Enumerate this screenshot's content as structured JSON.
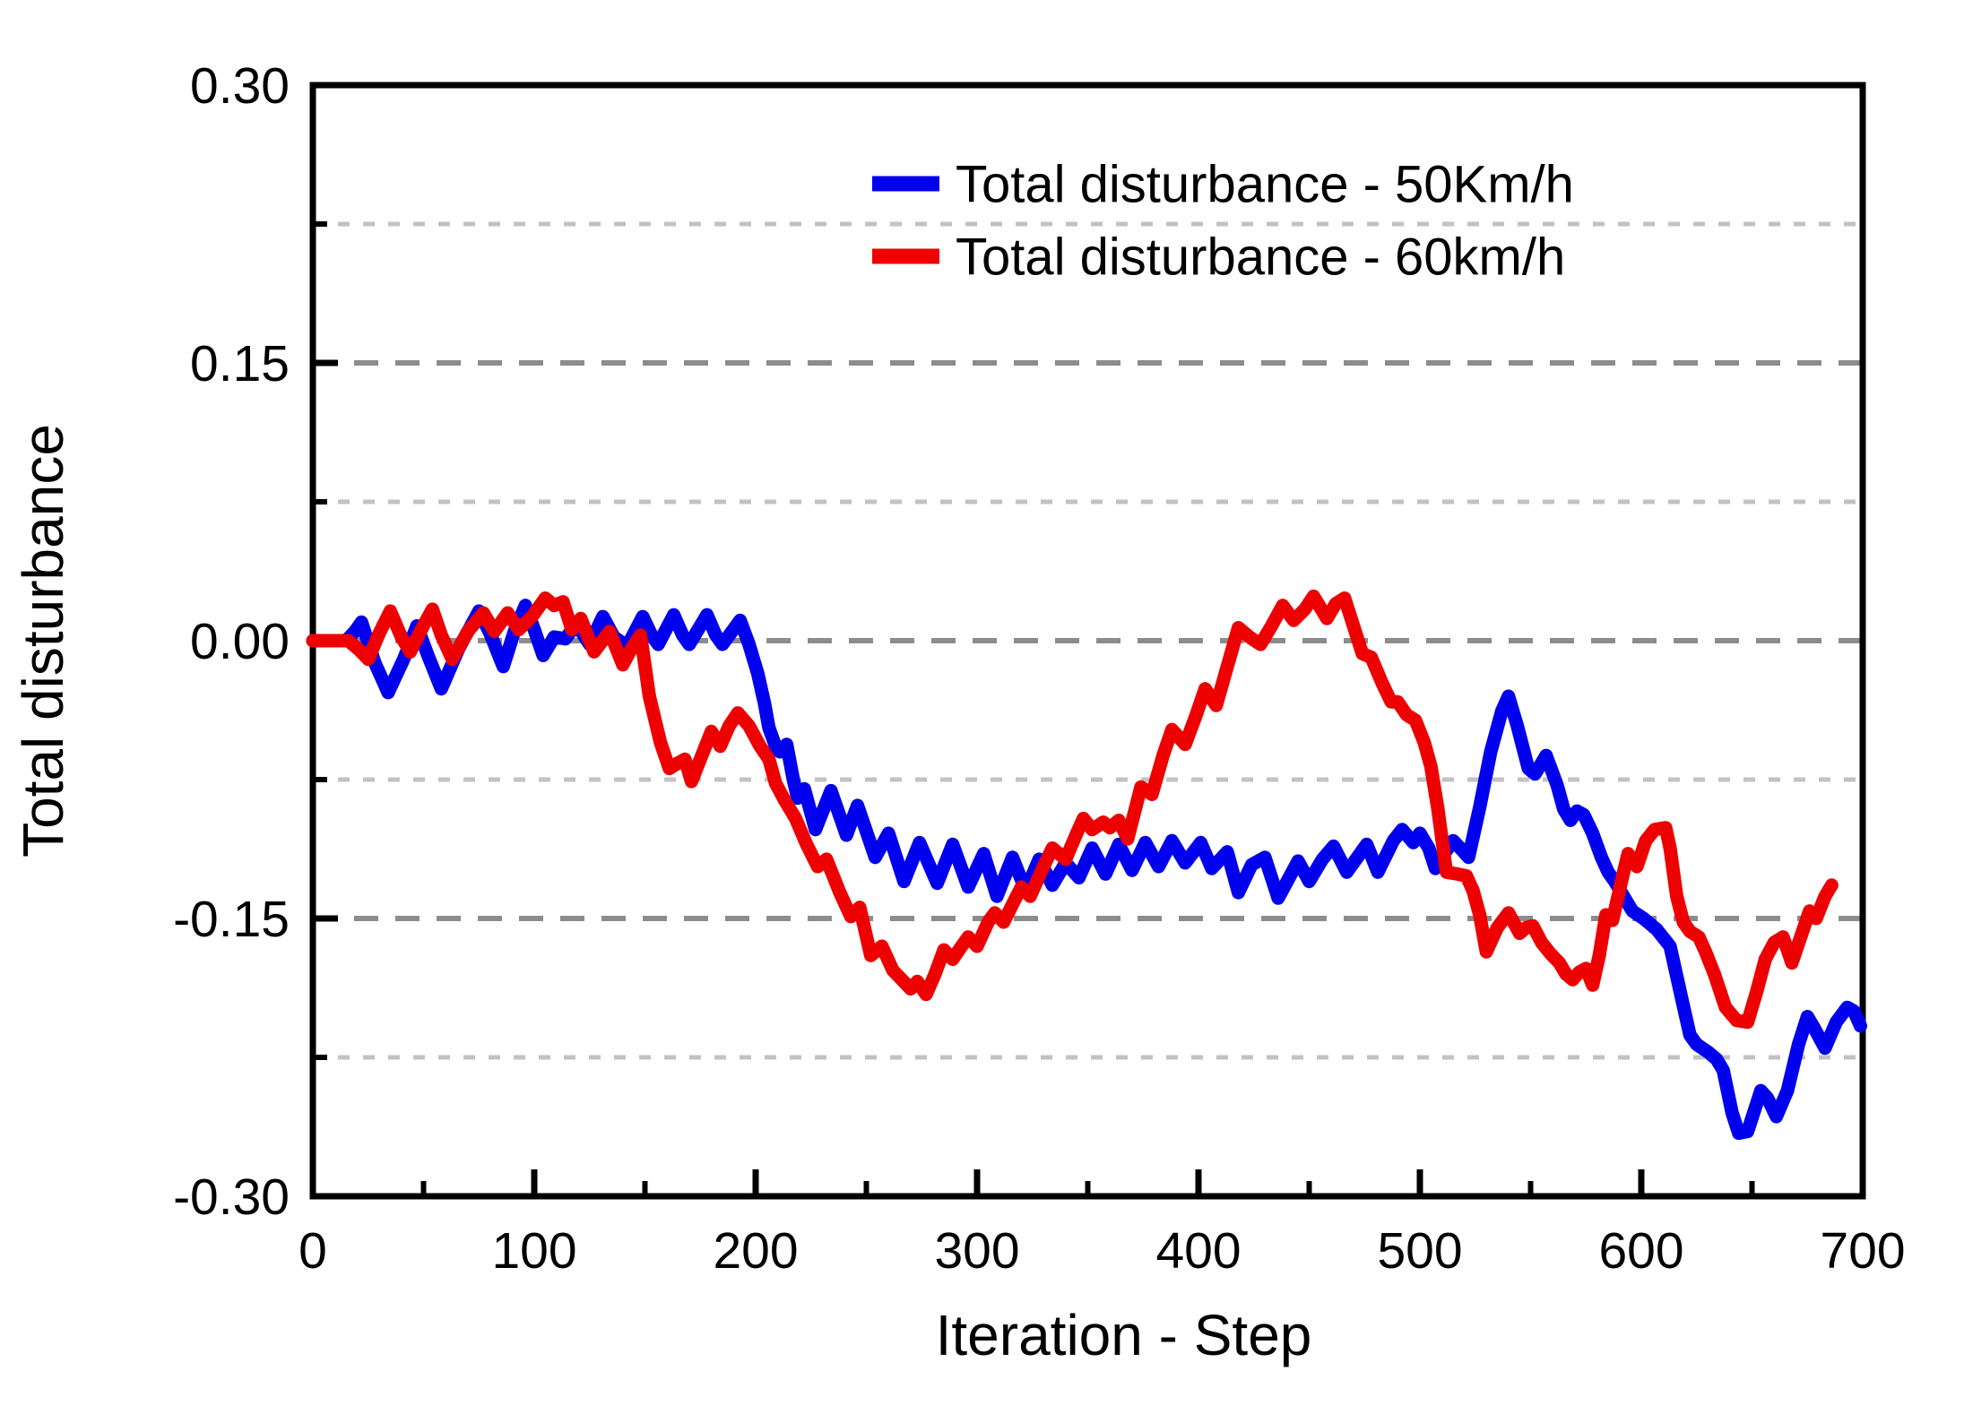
{
  "chart_data": {
    "type": "line",
    "title": "",
    "xlabel": "Iteration - Step",
    "ylabel": "Total disturbance",
    "xlim": [
      0,
      700
    ],
    "ylim": [
      -0.3,
      0.3
    ],
    "grid": "horizontal dashed lines every 0.075",
    "legend_position": "top-center-inside",
    "x_major_ticks": [
      0,
      100,
      200,
      300,
      400,
      500,
      600,
      700
    ],
    "x_major_labels": [
      "0",
      "100",
      "200",
      "300",
      "400",
      "500",
      "600",
      "700"
    ],
    "x_minor_ticks": [
      50,
      150,
      250,
      350,
      450,
      550,
      650
    ],
    "y_major_ticks": [
      0.3,
      0.15,
      0.0,
      -0.15,
      -0.3
    ],
    "y_major_labels": [
      "0.30",
      "0.15",
      "0.00",
      "-0.15",
      "-0.30"
    ],
    "y_minor_ticks": [
      0.225,
      0.075,
      -0.075,
      -0.225
    ],
    "series": [
      {
        "name": "Total disturbance  -  50Km/h",
        "color": "#0000ee",
        "points": [
          [
            0,
            0
          ],
          [
            15,
            0
          ],
          [
            19,
            0.005
          ],
          [
            22,
            0.01
          ],
          [
            28,
            -0.012
          ],
          [
            34,
            -0.028
          ],
          [
            41,
            -0.01
          ],
          [
            47,
            0.008
          ],
          [
            52,
            -0.008
          ],
          [
            58,
            -0.026
          ],
          [
            66,
            -0.004
          ],
          [
            75,
            0.016
          ],
          [
            80,
            0.004
          ],
          [
            86,
            -0.014
          ],
          [
            91,
            0.005
          ],
          [
            96,
            0.019
          ],
          [
            100,
            0.006
          ],
          [
            104,
            -0.008
          ],
          [
            109,
            0.002
          ],
          [
            114,
            0.001
          ],
          [
            119,
            0.009
          ],
          [
            125,
            -0.002
          ],
          [
            131,
            0.013
          ],
          [
            136,
            0.002
          ],
          [
            142,
            -0.003
          ],
          [
            149,
            0.013
          ],
          [
            153,
            0.003
          ],
          [
            156,
            -0.002
          ],
          [
            163,
            0.014
          ],
          [
            167,
            0.003
          ],
          [
            170,
            -0.002
          ],
          [
            178,
            0.014
          ],
          [
            182,
            0.003
          ],
          [
            185,
            -0.002
          ],
          [
            193,
            0.011
          ],
          [
            197,
            -0.002
          ],
          [
            201,
            -0.018
          ],
          [
            204,
            -0.034
          ],
          [
            206,
            -0.047
          ],
          [
            209,
            -0.057
          ],
          [
            211,
            -0.06
          ],
          [
            214,
            -0.056
          ],
          [
            217,
            -0.075
          ],
          [
            219,
            -0.085
          ],
          [
            222,
            -0.08
          ],
          [
            227,
            -0.102
          ],
          [
            234,
            -0.081
          ],
          [
            241,
            -0.105
          ],
          [
            246,
            -0.089
          ],
          [
            254,
            -0.117
          ],
          [
            260,
            -0.104
          ],
          [
            267,
            -0.13
          ],
          [
            274,
            -0.109
          ],
          [
            282,
            -0.131
          ],
          [
            289,
            -0.11
          ],
          [
            296,
            -0.133
          ],
          [
            303,
            -0.115
          ],
          [
            309,
            -0.138
          ],
          [
            316,
            -0.117
          ],
          [
            322,
            -0.135
          ],
          [
            328,
            -0.118
          ],
          [
            334,
            -0.132
          ],
          [
            340,
            -0.12
          ],
          [
            346,
            -0.128
          ],
          [
            352,
            -0.112
          ],
          [
            358,
            -0.126
          ],
          [
            364,
            -0.11
          ],
          [
            370,
            -0.124
          ],
          [
            376,
            -0.109
          ],
          [
            382,
            -0.122
          ],
          [
            388,
            -0.108
          ],
          [
            394,
            -0.12
          ],
          [
            401,
            -0.109
          ],
          [
            406,
            -0.123
          ],
          [
            413,
            -0.114
          ],
          [
            418,
            -0.136
          ],
          [
            424,
            -0.121
          ],
          [
            430,
            -0.117
          ],
          [
            436,
            -0.139
          ],
          [
            445,
            -0.119
          ],
          [
            450,
            -0.13
          ],
          [
            456,
            -0.118
          ],
          [
            461,
            -0.111
          ],
          [
            467,
            -0.125
          ],
          [
            476,
            -0.11
          ],
          [
            481,
            -0.125
          ],
          [
            488,
            -0.108
          ],
          [
            492,
            -0.102
          ],
          [
            497,
            -0.109
          ],
          [
            500,
            -0.104
          ],
          [
            504,
            -0.112
          ],
          [
            507,
            -0.123
          ],
          [
            511,
            -0.115
          ],
          [
            515,
            -0.108
          ],
          [
            519,
            -0.113
          ],
          [
            522,
            -0.117
          ],
          [
            527,
            -0.09
          ],
          [
            532,
            -0.06
          ],
          [
            537,
            -0.038
          ],
          [
            540,
            -0.03
          ],
          [
            544,
            -0.046
          ],
          [
            549,
            -0.069
          ],
          [
            552,
            -0.072
          ],
          [
            557,
            -0.062
          ],
          [
            562,
            -0.078
          ],
          [
            565,
            -0.091
          ],
          [
            568,
            -0.097
          ],
          [
            571,
            -0.092
          ],
          [
            574,
            -0.094
          ],
          [
            578,
            -0.104
          ],
          [
            582,
            -0.117
          ],
          [
            585,
            -0.125
          ],
          [
            588,
            -0.13
          ],
          [
            592,
            -0.138
          ],
          [
            596,
            -0.146
          ],
          [
            601,
            -0.15
          ],
          [
            607,
            -0.156
          ],
          [
            613,
            -0.165
          ],
          [
            618,
            -0.192
          ],
          [
            622,
            -0.213
          ],
          [
            625,
            -0.218
          ],
          [
            630,
            -0.222
          ],
          [
            634,
            -0.226
          ],
          [
            637,
            -0.232
          ],
          [
            641,
            -0.255
          ],
          [
            644,
            -0.266
          ],
          [
            648,
            -0.265
          ],
          [
            654,
            -0.243
          ],
          [
            657,
            -0.247
          ],
          [
            661,
            -0.257
          ],
          [
            666,
            -0.243
          ],
          [
            671,
            -0.218
          ],
          [
            675,
            -0.203
          ],
          [
            678,
            -0.209
          ],
          [
            683,
            -0.22
          ],
          [
            688,
            -0.206
          ],
          [
            693,
            -0.198
          ],
          [
            696,
            -0.2
          ],
          [
            699,
            -0.208
          ]
        ]
      },
      {
        "name": "Total disturbance  -  60km/h",
        "color": "#ee0000",
        "points": [
          [
            0,
            0
          ],
          [
            16,
            0
          ],
          [
            21,
            -0.005
          ],
          [
            25,
            -0.01
          ],
          [
            30,
            0.004
          ],
          [
            35,
            0.016
          ],
          [
            40,
            0.002
          ],
          [
            44,
            -0.006
          ],
          [
            49,
            0.006
          ],
          [
            54,
            0.017
          ],
          [
            58,
            0.003
          ],
          [
            63,
            -0.01
          ],
          [
            70,
            0.005
          ],
          [
            77,
            0.015
          ],
          [
            82,
            0.005
          ],
          [
            88,
            0.015
          ],
          [
            93,
            0.006
          ],
          [
            99,
            0.013
          ],
          [
            105,
            0.023
          ],
          [
            109,
            0.019
          ],
          [
            113,
            0.021
          ],
          [
            117,
            0.006
          ],
          [
            121,
            0.012
          ],
          [
            127,
            -0.006
          ],
          [
            134,
            0.005
          ],
          [
            140,
            -0.013
          ],
          [
            144,
            -0.004
          ],
          [
            148,
            0.003
          ],
          [
            152,
            -0.03
          ],
          [
            157,
            -0.055
          ],
          [
            161,
            -0.069
          ],
          [
            165,
            -0.066
          ],
          [
            168,
            -0.064
          ],
          [
            171,
            -0.076
          ],
          [
            176,
            -0.061
          ],
          [
            180,
            -0.049
          ],
          [
            184,
            -0.057
          ],
          [
            188,
            -0.046
          ],
          [
            192,
            -0.039
          ],
          [
            197,
            -0.046
          ],
          [
            202,
            -0.057
          ],
          [
            206,
            -0.064
          ],
          [
            209,
            -0.077
          ],
          [
            213,
            -0.086
          ],
          [
            218,
            -0.096
          ],
          [
            223,
            -0.11
          ],
          [
            228,
            -0.122
          ],
          [
            232,
            -0.118
          ],
          [
            238,
            -0.136
          ],
          [
            243,
            -0.149
          ],
          [
            247,
            -0.144
          ],
          [
            252,
            -0.17
          ],
          [
            257,
            -0.165
          ],
          [
            262,
            -0.178
          ],
          [
            266,
            -0.183
          ],
          [
            270,
            -0.188
          ],
          [
            273,
            -0.184
          ],
          [
            277,
            -0.191
          ],
          [
            281,
            -0.18
          ],
          [
            285,
            -0.167
          ],
          [
            289,
            -0.172
          ],
          [
            293,
            -0.165
          ],
          [
            296,
            -0.16
          ],
          [
            300,
            -0.165
          ],
          [
            305,
            -0.152
          ],
          [
            308,
            -0.147
          ],
          [
            312,
            -0.152
          ],
          [
            317,
            -0.14
          ],
          [
            320,
            -0.133
          ],
          [
            324,
            -0.138
          ],
          [
            330,
            -0.122
          ],
          [
            334,
            -0.112
          ],
          [
            340,
            -0.118
          ],
          [
            345,
            -0.104
          ],
          [
            348,
            -0.096
          ],
          [
            352,
            -0.102
          ],
          [
            357,
            -0.098
          ],
          [
            360,
            -0.101
          ],
          [
            364,
            -0.097
          ],
          [
            368,
            -0.107
          ],
          [
            374,
            -0.079
          ],
          [
            379,
            -0.083
          ],
          [
            384,
            -0.062
          ],
          [
            388,
            -0.048
          ],
          [
            394,
            -0.056
          ],
          [
            399,
            -0.04
          ],
          [
            403,
            -0.026
          ],
          [
            408,
            -0.035
          ],
          [
            413,
            -0.014
          ],
          [
            418,
            0.007
          ],
          [
            423,
            0.002
          ],
          [
            428,
            -0.002
          ],
          [
            433,
            0.008
          ],
          [
            438,
            0.019
          ],
          [
            443,
            0.011
          ],
          [
            448,
            0.017
          ],
          [
            452,
            0.024
          ],
          [
            458,
            0.012
          ],
          [
            462,
            0.02
          ],
          [
            466,
            0.023
          ],
          [
            470,
            0.008
          ],
          [
            474,
            -0.007
          ],
          [
            478,
            -0.009
          ],
          [
            483,
            -0.023
          ],
          [
            487,
            -0.033
          ],
          [
            490,
            -0.033
          ],
          [
            494,
            -0.04
          ],
          [
            498,
            -0.043
          ],
          [
            502,
            -0.055
          ],
          [
            505,
            -0.068
          ],
          [
            508,
            -0.09
          ],
          [
            512,
            -0.125
          ],
          [
            517,
            -0.126
          ],
          [
            521,
            -0.127
          ],
          [
            524,
            -0.135
          ],
          [
            527,
            -0.148
          ],
          [
            530,
            -0.168
          ],
          [
            535,
            -0.155
          ],
          [
            540,
            -0.147
          ],
          [
            545,
            -0.158
          ],
          [
            548,
            -0.155
          ],
          [
            551,
            -0.154
          ],
          [
            555,
            -0.163
          ],
          [
            559,
            -0.169
          ],
          [
            563,
            -0.174
          ],
          [
            566,
            -0.18
          ],
          [
            569,
            -0.183
          ],
          [
            572,
            -0.179
          ],
          [
            575,
            -0.177
          ],
          [
            578,
            -0.186
          ],
          [
            581,
            -0.17
          ],
          [
            584,
            -0.148
          ],
          [
            587,
            -0.151
          ],
          [
            591,
            -0.13
          ],
          [
            594,
            -0.115
          ],
          [
            598,
            -0.122
          ],
          [
            602,
            -0.108
          ],
          [
            606,
            -0.102
          ],
          [
            611,
            -0.101
          ],
          [
            613,
            -0.112
          ],
          [
            616,
            -0.138
          ],
          [
            619,
            -0.152
          ],
          [
            622,
            -0.157
          ],
          [
            626,
            -0.16
          ],
          [
            629,
            -0.168
          ],
          [
            633,
            -0.18
          ],
          [
            638,
            -0.198
          ],
          [
            643,
            -0.205
          ],
          [
            648,
            -0.206
          ],
          [
            652,
            -0.19
          ],
          [
            656,
            -0.172
          ],
          [
            660,
            -0.163
          ],
          [
            664,
            -0.16
          ],
          [
            668,
            -0.174
          ],
          [
            672,
            -0.16
          ],
          [
            676,
            -0.146
          ],
          [
            679,
            -0.15
          ],
          [
            683,
            -0.138
          ],
          [
            686,
            -0.132
          ]
        ]
      }
    ],
    "legend": {
      "items": [
        {
          "label": "Total disturbance  -  50Km/h",
          "color": "#0000ee"
        },
        {
          "label": "Total disturbance  -  60km/h",
          "color": "#ee0000"
        }
      ]
    },
    "style": {
      "axis_color": "#000000",
      "major_grid_color": "#8c8c8c",
      "minor_grid_color": "#c2c2c2",
      "background": "#ffffff",
      "line_width": 15
    }
  }
}
